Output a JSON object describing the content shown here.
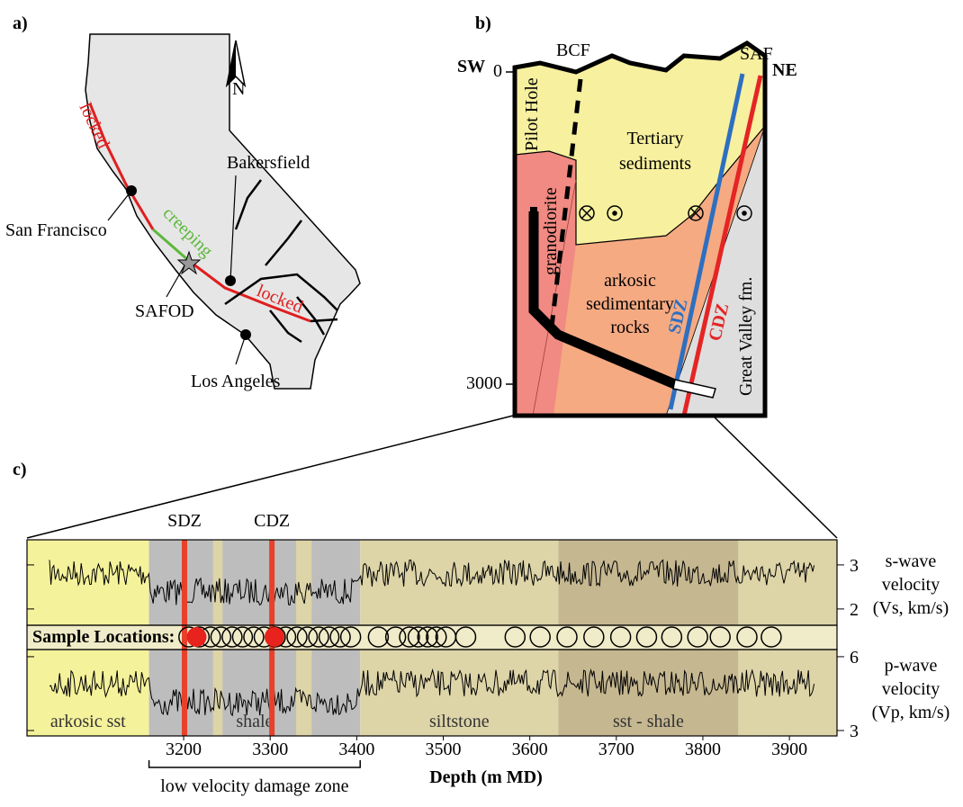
{
  "panel_a": {
    "label": "a)",
    "north": "N",
    "places": [
      "Bakersfield",
      "San Francisco",
      "SAFOD",
      "Los Angeles"
    ],
    "fault_labels": [
      "locked",
      "creeping",
      "locked"
    ]
  },
  "panel_b": {
    "label": "b)",
    "sw": "SW",
    "ne": "NE",
    "bcf": "BCF",
    "saf": "SAF",
    "depth_ticks": [
      0,
      3000
    ],
    "pilot_hole": "Pilot Hole",
    "tertiary": [
      "Tertiary",
      "sediments"
    ],
    "granodiorite": "granodiorite",
    "arkosic": [
      "arkosic",
      "sedimentary",
      "rocks"
    ],
    "great_valley": "Great Valley fm.",
    "sdz": "SDZ",
    "cdz": "CDZ"
  },
  "panel_c": {
    "label": "c)",
    "xlim": [
      3019,
      3955
    ],
    "xticks": [
      3200,
      3300,
      3400,
      3500,
      3600,
      3700,
      3800,
      3900
    ],
    "xlabel": "Depth (m MD)",
    "bracket_label": "low velocity damage zone",
    "zones": [
      {
        "name": "SDZ",
        "depth": 3201
      },
      {
        "name": "CDZ",
        "depth": 3302
      }
    ],
    "lithology": [
      {
        "from": 3019,
        "to": 3160,
        "color": "#f5f29c",
        "label": "arkosic sst"
      },
      {
        "from": 3160,
        "to": 3404,
        "color": "#bdbdbd",
        "label": "shale"
      },
      {
        "from": 3234,
        "to": 3245,
        "color": "#ddd4a8"
      },
      {
        "from": 3330,
        "to": 3348,
        "color": "#ddd4a8"
      },
      {
        "from": 3404,
        "to": 3633,
        "color": "#ddd4a8",
        "label": "siltstone"
      },
      {
        "from": 3633,
        "to": 3841,
        "color": "#c5b790",
        "label": "sst - shale"
      },
      {
        "from": 3841,
        "to": 3955,
        "color": "#ddd4a8"
      }
    ],
    "sample_label": "Sample Locations:",
    "samples": [
      3206,
      3218,
      3231,
      3243,
      3256,
      3268,
      3281,
      3293,
      3306,
      3318,
      3331,
      3343,
      3356,
      3368,
      3381,
      3393,
      3425,
      3445,
      3461,
      3471,
      3482,
      3492,
      3503,
      3526,
      3583,
      3612,
      3643,
      3674,
      3705,
      3735,
      3764,
      3794,
      3820,
      3851,
      3879
    ],
    "highlighted_samples": [
      3215,
      3305
    ],
    "vs_axis": {
      "ylim": [
        1.63,
        3.57
      ],
      "yticks": [
        2,
        3
      ],
      "label": [
        "s-wave",
        "velocity",
        "(Vs, km/s)"
      ]
    },
    "vp_axis": {
      "ylim": [
        2.78,
        6.29
      ],
      "yticks": [
        3,
        6
      ],
      "label": [
        "p-wave",
        "velocity",
        "(Vp, km/s)"
      ]
    }
  }
}
